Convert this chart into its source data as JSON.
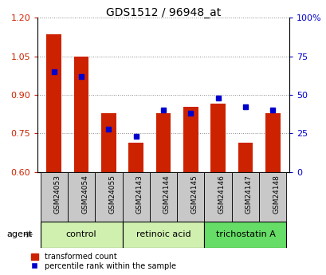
{
  "title": "GDS1512 / 96948_at",
  "samples": [
    "GSM24053",
    "GSM24054",
    "GSM24055",
    "GSM24143",
    "GSM24144",
    "GSM24145",
    "GSM24146",
    "GSM24147",
    "GSM24148"
  ],
  "red_values": [
    1.135,
    1.048,
    0.83,
    0.715,
    0.83,
    0.855,
    0.865,
    0.715,
    0.83
  ],
  "blue_pct": [
    65,
    62,
    28,
    23,
    40,
    38,
    48,
    42,
    40
  ],
  "ylim_left": [
    0.6,
    1.2
  ],
  "ylim_right": [
    0,
    100
  ],
  "yticks_left": [
    0.6,
    0.75,
    0.9,
    1.05,
    1.2
  ],
  "yticks_right": [
    0,
    25,
    50,
    75,
    100
  ],
  "ytick_labels_right": [
    "0",
    "25",
    "50",
    "75",
    "100%"
  ],
  "groups": [
    {
      "label": "control",
      "indices": [
        0,
        1,
        2
      ],
      "color": "#d0f0b0"
    },
    {
      "label": "retinoic acid",
      "indices": [
        3,
        4,
        5
      ],
      "color": "#d0f0b0"
    },
    {
      "label": "trichostatin A",
      "indices": [
        6,
        7,
        8
      ],
      "color": "#66dd66"
    }
  ],
  "bar_color": "#cc2200",
  "dot_color": "#0000cc",
  "grid_color": "#888888",
  "sample_box_color": "#c8c8c8",
  "background_color": "#ffffff",
  "tick_label_color_left": "#cc2200",
  "tick_label_color_right": "#0000cc",
  "legend_red": "transformed count",
  "legend_blue": "percentile rank within the sample",
  "agent_label": "agent",
  "bar_width": 0.55
}
